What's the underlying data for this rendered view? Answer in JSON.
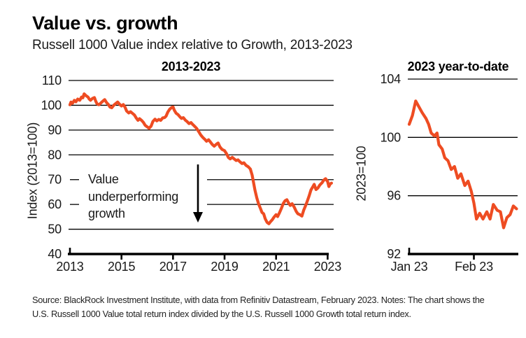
{
  "header": {
    "title": "Value vs. growth",
    "subtitle": "Russell 1000 Value index relative to Growth, 2013-2023"
  },
  "colors": {
    "line": "#ee4c22",
    "grid": "#000000",
    "text": "#1a1a1a"
  },
  "footer": {
    "source_line1": "Source: BlackRock Investment Institute, with data from Refinitiv Datastream, February 2023. Notes: The chart shows the",
    "source_line2": "U.S. Russell 1000 Value total return index divided by the U.S. Russell 1000 Growth total return index."
  },
  "chart_data": [
    {
      "type": "line",
      "title": "2013-2023",
      "ylabel": "Index (2013=100)",
      "ylim": [
        40,
        110
      ],
      "y_ticks": [
        110,
        100,
        90,
        80,
        70,
        60,
        50,
        40
      ],
      "xlim": [
        2012.95,
        2023.23
      ],
      "x_ticks": [
        {
          "label": "2013",
          "x": 2013
        },
        {
          "label": "2015",
          "x": 2015
        },
        {
          "label": "2017",
          "x": 2017
        },
        {
          "label": "2019",
          "x": 2019
        },
        {
          "label": "2021",
          "x": 2021
        },
        {
          "label": "2023",
          "x": 2023
        }
      ],
      "annotation": {
        "text": "Value underperforming growth",
        "lines": [
          "Value",
          "underperforming",
          "growth"
        ],
        "arrow": "down"
      },
      "grid": true,
      "legend": "none",
      "series": [
        {
          "name": "Russell 1000 Value relative to Growth (2013=100)",
          "points": [
            [
              2013.0,
              100.2
            ],
            [
              2013.04,
              101.3
            ],
            [
              2013.1,
              100.8
            ],
            [
              2013.17,
              102.0
            ],
            [
              2013.23,
              101.4
            ],
            [
              2013.3,
              102.5
            ],
            [
              2013.38,
              102.0
            ],
            [
              2013.45,
              103.3
            ],
            [
              2013.5,
              103.0
            ],
            [
              2013.55,
              104.6
            ],
            [
              2013.62,
              103.9
            ],
            [
              2013.7,
              103.3
            ],
            [
              2013.75,
              102.5
            ],
            [
              2013.8,
              102.0
            ],
            [
              2013.88,
              102.8
            ],
            [
              2013.95,
              103.1
            ],
            [
              2014.0,
              101.7
            ],
            [
              2014.05,
              100.6
            ],
            [
              2014.12,
              100.2
            ],
            [
              2014.2,
              100.9
            ],
            [
              2014.28,
              101.7
            ],
            [
              2014.35,
              102.3
            ],
            [
              2014.42,
              101.1
            ],
            [
              2014.5,
              100.2
            ],
            [
              2014.55,
              99.3
            ],
            [
              2014.62,
              99.0
            ],
            [
              2014.7,
              100.0
            ],
            [
              2014.78,
              100.7
            ],
            [
              2014.85,
              101.3
            ],
            [
              2014.92,
              100.5
            ],
            [
              2015.0,
              99.7
            ],
            [
              2015.07,
              100.3
            ],
            [
              2015.14,
              99.2
            ],
            [
              2015.2,
              97.7
            ],
            [
              2015.28,
              96.9
            ],
            [
              2015.35,
              97.4
            ],
            [
              2015.42,
              96.8
            ],
            [
              2015.5,
              96.1
            ],
            [
              2015.57,
              94.9
            ],
            [
              2015.64,
              93.9
            ],
            [
              2015.7,
              94.6
            ],
            [
              2015.78,
              93.9
            ],
            [
              2015.85,
              93.1
            ],
            [
              2015.92,
              91.9
            ],
            [
              2016.0,
              91.3
            ],
            [
              2016.07,
              90.7
            ],
            [
              2016.15,
              91.6
            ],
            [
              2016.22,
              93.5
            ],
            [
              2016.3,
              94.4
            ],
            [
              2016.37,
              93.7
            ],
            [
              2016.45,
              94.3
            ],
            [
              2016.52,
              93.9
            ],
            [
              2016.6,
              94.9
            ],
            [
              2016.67,
              95.0
            ],
            [
              2016.73,
              95.6
            ],
            [
              2016.8,
              97.3
            ],
            [
              2016.88,
              98.5
            ],
            [
              2016.95,
              99.1
            ],
            [
              2017.0,
              99.3
            ],
            [
              2017.05,
              98.0
            ],
            [
              2017.12,
              96.8
            ],
            [
              2017.2,
              96.2
            ],
            [
              2017.27,
              95.3
            ],
            [
              2017.33,
              94.7
            ],
            [
              2017.4,
              95.0
            ],
            [
              2017.48,
              94.0
            ],
            [
              2017.55,
              93.4
            ],
            [
              2017.62,
              92.6
            ],
            [
              2017.7,
              93.0
            ],
            [
              2017.78,
              92.1
            ],
            [
              2017.85,
              91.4
            ],
            [
              2017.92,
              90.6
            ],
            [
              2018.0,
              89.3
            ],
            [
              2018.07,
              88.1
            ],
            [
              2018.15,
              87.1
            ],
            [
              2018.22,
              86.4
            ],
            [
              2018.3,
              85.5
            ],
            [
              2018.38,
              86.1
            ],
            [
              2018.45,
              85.2
            ],
            [
              2018.52,
              84.2
            ],
            [
              2018.6,
              83.5
            ],
            [
              2018.68,
              84.3
            ],
            [
              2018.75,
              84.8
            ],
            [
              2018.82,
              83.2
            ],
            [
              2018.9,
              82.2
            ],
            [
              2019.0,
              81.7
            ],
            [
              2019.07,
              80.6
            ],
            [
              2019.15,
              78.9
            ],
            [
              2019.22,
              78.4
            ],
            [
              2019.3,
              79.0
            ],
            [
              2019.38,
              78.3
            ],
            [
              2019.45,
              77.7
            ],
            [
              2019.52,
              78.0
            ],
            [
              2019.6,
              77.2
            ],
            [
              2019.68,
              76.5
            ],
            [
              2019.75,
              76.8
            ],
            [
              2019.83,
              75.8
            ],
            [
              2019.92,
              75.2
            ],
            [
              2020.0,
              74.3
            ],
            [
              2020.07,
              71.8
            ],
            [
              2020.13,
              68.5
            ],
            [
              2020.18,
              65.8
            ],
            [
              2020.25,
              62.7
            ],
            [
              2020.32,
              60.2
            ],
            [
              2020.4,
              58.2
            ],
            [
              2020.45,
              56.8
            ],
            [
              2020.52,
              56.2
            ],
            [
              2020.58,
              54.2
            ],
            [
              2020.65,
              52.8
            ],
            [
              2020.72,
              52.2
            ],
            [
              2020.78,
              53.0
            ],
            [
              2020.85,
              53.8
            ],
            [
              2020.92,
              54.9
            ],
            [
              2021.0,
              55.9
            ],
            [
              2021.06,
              55.1
            ],
            [
              2021.13,
              56.6
            ],
            [
              2021.2,
              58.3
            ],
            [
              2021.28,
              60.4
            ],
            [
              2021.35,
              61.5
            ],
            [
              2021.42,
              61.9
            ],
            [
              2021.48,
              60.7
            ],
            [
              2021.55,
              59.6
            ],
            [
              2021.62,
              60.3
            ],
            [
              2021.7,
              59.0
            ],
            [
              2021.78,
              57.2
            ],
            [
              2021.85,
              56.2
            ],
            [
              2021.92,
              55.9
            ],
            [
              2022.0,
              55.3
            ],
            [
              2022.07,
              57.6
            ],
            [
              2022.14,
              59.4
            ],
            [
              2022.2,
              61.0
            ],
            [
              2022.28,
              63.4
            ],
            [
              2022.35,
              65.8
            ],
            [
              2022.42,
              67.0
            ],
            [
              2022.48,
              68.1
            ],
            [
              2022.55,
              66.0
            ],
            [
              2022.62,
              66.6
            ],
            [
              2022.7,
              67.9
            ],
            [
              2022.78,
              68.7
            ],
            [
              2022.85,
              69.8
            ],
            [
              2022.92,
              70.4
            ],
            [
              2023.0,
              69.2
            ],
            [
              2023.05,
              67.2
            ],
            [
              2023.1,
              68.3
            ],
            [
              2023.15,
              68.6
            ]
          ]
        }
      ]
    },
    {
      "type": "line",
      "title": "2023 year-to-date",
      "ylabel": "2023=100",
      "ylim": [
        92,
        104
      ],
      "y_ticks": [
        104,
        100,
        96,
        92
      ],
      "xlim": [
        -0.02,
        1.7
      ],
      "x_ticks": [
        {
          "label": "Jan 23",
          "x": 0
        },
        {
          "label": "Feb 23",
          "x": 1
        }
      ],
      "grid": true,
      "legend": "none",
      "series": [
        {
          "name": "Russell 1000 Value relative to Growth (2023=100)",
          "points": [
            [
              0.0,
              100.9
            ],
            [
              0.05,
              101.5
            ],
            [
              0.1,
              102.5
            ],
            [
              0.15,
              102.1
            ],
            [
              0.2,
              101.7
            ],
            [
              0.26,
              101.3
            ],
            [
              0.3,
              100.9
            ],
            [
              0.34,
              100.3
            ],
            [
              0.39,
              100.1
            ],
            [
              0.43,
              100.3
            ],
            [
              0.46,
              99.5
            ],
            [
              0.51,
              99.2
            ],
            [
              0.55,
              98.6
            ],
            [
              0.6,
              98.4
            ],
            [
              0.65,
              97.8
            ],
            [
              0.7,
              98.0
            ],
            [
              0.75,
              97.2
            ],
            [
              0.8,
              97.5
            ],
            [
              0.86,
              96.7
            ],
            [
              0.91,
              97.0
            ],
            [
              0.96,
              96.3
            ],
            [
              1.0,
              95.5
            ],
            [
              1.04,
              94.4
            ],
            [
              1.09,
              94.8
            ],
            [
              1.14,
              94.4
            ],
            [
              1.2,
              94.9
            ],
            [
              1.25,
              94.4
            ],
            [
              1.3,
              95.4
            ],
            [
              1.36,
              95.0
            ],
            [
              1.41,
              94.9
            ],
            [
              1.46,
              93.8
            ],
            [
              1.51,
              94.5
            ],
            [
              1.56,
              94.7
            ],
            [
              1.61,
              95.3
            ],
            [
              1.66,
              95.1
            ]
          ]
        }
      ]
    }
  ]
}
